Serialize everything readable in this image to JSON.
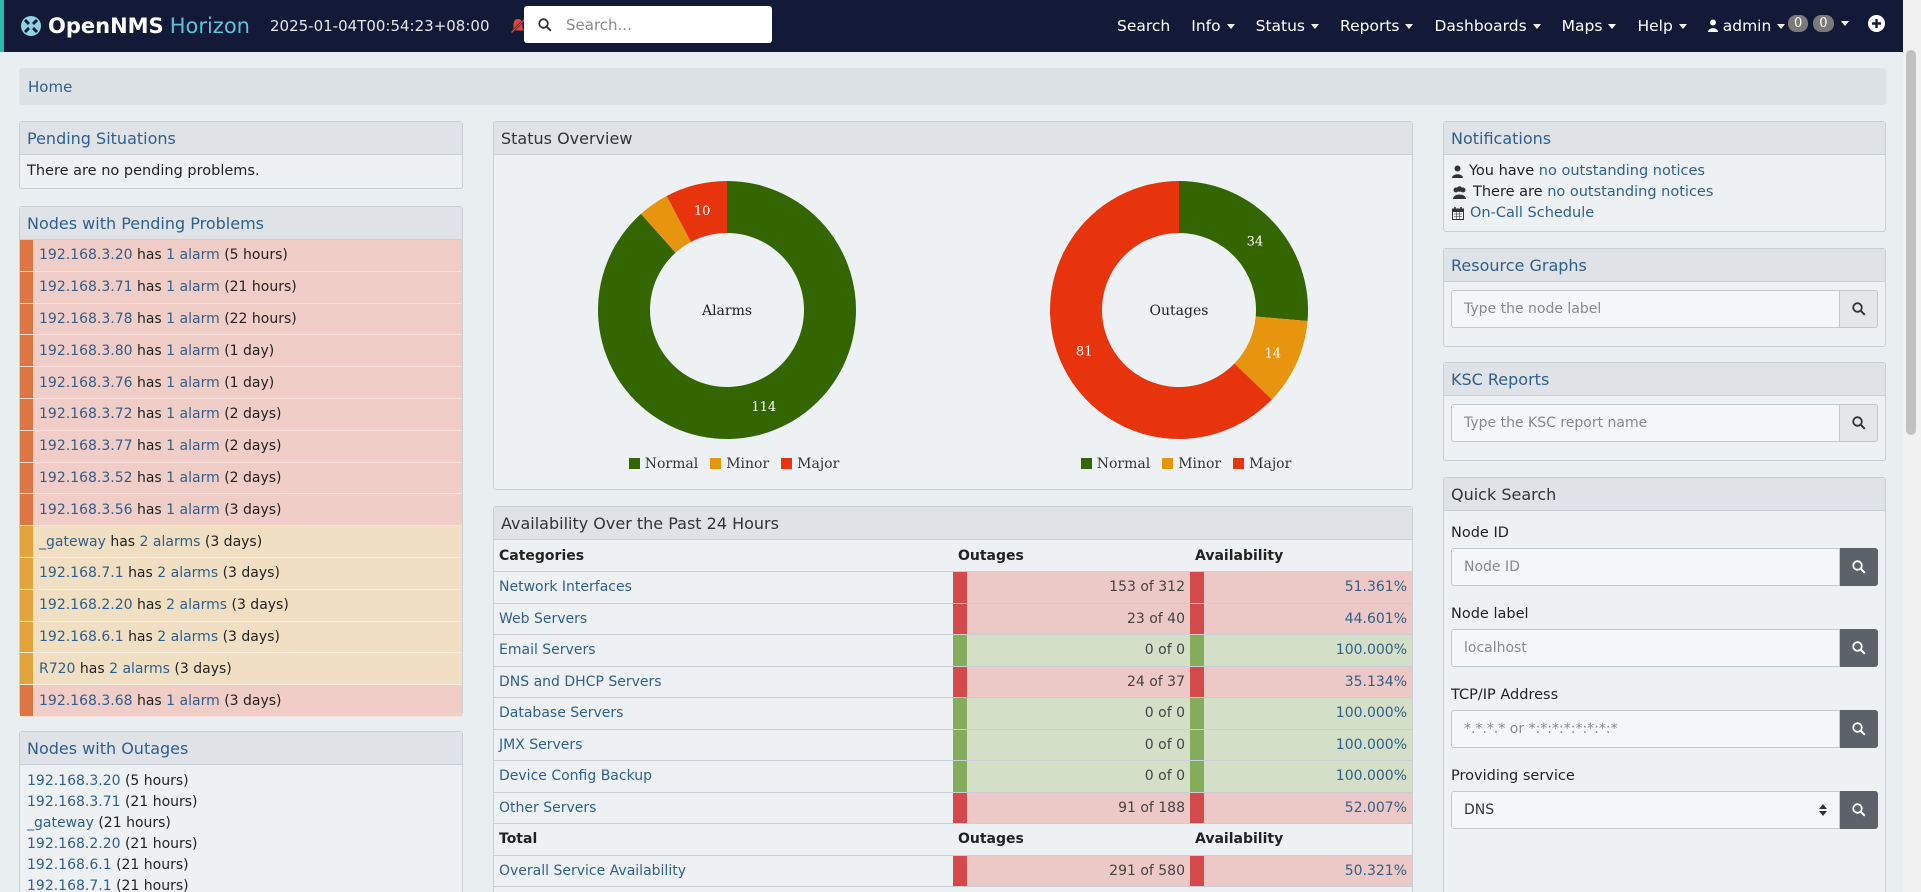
{
  "navbar": {
    "brand_open": "OpenNMS",
    "brand_horizon": "Horizon",
    "timestamp": "2025-01-04T00:54:23+08:00",
    "search_placeholder": "Search...",
    "menu": {
      "search": "Search",
      "info": "Info",
      "status": "Status",
      "reports": "Reports",
      "dashboards": "Dashboards",
      "maps": "Maps",
      "help": "Help",
      "user": "admin"
    },
    "badge_1": "0",
    "badge_2": "0"
  },
  "breadcrumb": {
    "home": "Home"
  },
  "pending_situations": {
    "title": "Pending Situations",
    "message": "There are no pending problems."
  },
  "pending_problems": {
    "title": "Nodes with Pending Problems",
    "rows": [
      {
        "node": "192.168.3.20",
        "has": "has",
        "alarms": "1 alarm",
        "age": "(5 hours)",
        "severity": "major"
      },
      {
        "node": "192.168.3.71",
        "has": "has",
        "alarms": "1 alarm",
        "age": "(21 hours)",
        "severity": "major"
      },
      {
        "node": "192.168.3.78",
        "has": "has",
        "alarms": "1 alarm",
        "age": "(22 hours)",
        "severity": "major"
      },
      {
        "node": "192.168.3.80",
        "has": "has",
        "alarms": "1 alarm",
        "age": "(1 day)",
        "severity": "major"
      },
      {
        "node": "192.168.3.76",
        "has": "has",
        "alarms": "1 alarm",
        "age": "(1 day)",
        "severity": "major"
      },
      {
        "node": "192.168.3.72",
        "has": "has",
        "alarms": "1 alarm",
        "age": "(2 days)",
        "severity": "major"
      },
      {
        "node": "192.168.3.77",
        "has": "has",
        "alarms": "1 alarm",
        "age": "(2 days)",
        "severity": "major"
      },
      {
        "node": "192.168.3.52",
        "has": "has",
        "alarms": "1 alarm",
        "age": "(2 days)",
        "severity": "major"
      },
      {
        "node": "192.168.3.56",
        "has": "has",
        "alarms": "1 alarm",
        "age": "(3 days)",
        "severity": "major"
      },
      {
        "node": "_gateway",
        "has": "has",
        "alarms": "2 alarms",
        "age": "(3 days)",
        "severity": "minor"
      },
      {
        "node": "192.168.7.1",
        "has": "has",
        "alarms": "2 alarms",
        "age": "(3 days)",
        "severity": "minor"
      },
      {
        "node": "192.168.2.20",
        "has": "has",
        "alarms": "2 alarms",
        "age": "(3 days)",
        "severity": "minor"
      },
      {
        "node": "192.168.6.1",
        "has": "has",
        "alarms": "2 alarms",
        "age": "(3 days)",
        "severity": "minor"
      },
      {
        "node": "R720",
        "has": "has",
        "alarms": "2 alarms",
        "age": "(3 days)",
        "severity": "minor"
      },
      {
        "node": "192.168.3.68",
        "has": "has",
        "alarms": "1 alarm",
        "age": "(3 days)",
        "severity": "major"
      }
    ]
  },
  "nodes_with_outages": {
    "title": "Nodes with Outages",
    "rows": [
      {
        "node": "192.168.3.20",
        "age": "(5 hours)"
      },
      {
        "node": "192.168.3.71",
        "age": "(21 hours)"
      },
      {
        "node": "_gateway",
        "age": "(21 hours)"
      },
      {
        "node": "192.168.2.20",
        "age": "(21 hours)"
      },
      {
        "node": "192.168.6.1",
        "age": "(21 hours)"
      },
      {
        "node": "192.168.7.1",
        "age": "(21 hours)"
      }
    ]
  },
  "status_overview": {
    "title": "Status Overview",
    "legend": {
      "normal": "Normal",
      "minor": "Minor",
      "major": "Major"
    },
    "colors": {
      "normal": "#336600",
      "minor": "#e7950f",
      "major": "#e8340c"
    }
  },
  "chart_data": [
    {
      "type": "pie",
      "title": "Alarms",
      "categories": [
        "Normal",
        "Minor",
        "Major"
      ],
      "values": [
        114,
        5,
        10
      ],
      "data_labels": [
        "114",
        "",
        "10"
      ]
    },
    {
      "type": "pie",
      "title": "Outages",
      "categories": [
        "Normal",
        "Minor",
        "Major"
      ],
      "values": [
        34,
        14,
        81
      ],
      "data_labels": [
        "34",
        "14",
        "81"
      ]
    }
  ],
  "availability": {
    "title": "Availability Over the Past 24 Hours",
    "headers": {
      "categories": "Categories",
      "outages": "Outages",
      "availability": "Availability"
    },
    "rows": [
      {
        "name": "Network Interfaces",
        "outages": "153 of 312",
        "availability": "51.361%",
        "status": "red"
      },
      {
        "name": "Web Servers",
        "outages": "23 of 40",
        "availability": "44.601%",
        "status": "red"
      },
      {
        "name": "Email Servers",
        "outages": "0 of 0",
        "availability": "100.000%",
        "status": "green"
      },
      {
        "name": "DNS and DHCP Servers",
        "outages": "24 of 37",
        "availability": "35.134%",
        "status": "red"
      },
      {
        "name": "Database Servers",
        "outages": "0 of 0",
        "availability": "100.000%",
        "status": "green"
      },
      {
        "name": "JMX Servers",
        "outages": "0 of 0",
        "availability": "100.000%",
        "status": "green"
      },
      {
        "name": "Device Config Backup",
        "outages": "0 of 0",
        "availability": "100.000%",
        "status": "green"
      },
      {
        "name": "Other Servers",
        "outages": "91 of 188",
        "availability": "52.007%",
        "status": "red"
      }
    ],
    "total_headers": {
      "total": "Total",
      "outages": "Outages",
      "availability": "Availability"
    },
    "overall": {
      "name": "Overall Service Availability",
      "outages": "291 of 580",
      "availability": "50.321%",
      "status": "red"
    }
  },
  "notifications": {
    "title": "Notifications",
    "line1_prefix": "You have",
    "line1_link": "no outstanding notices",
    "line2_prefix": "There are",
    "line2_link": "no outstanding notices",
    "oncall": "On-Call Schedule"
  },
  "resource_graphs": {
    "title": "Resource Graphs",
    "placeholder": "Type the node label"
  },
  "ksc_reports": {
    "title": "KSC Reports",
    "placeholder": "Type the KSC report name"
  },
  "quick_search": {
    "title": "Quick Search",
    "node_id_label": "Node ID",
    "node_id_placeholder": "Node ID",
    "node_label_label": "Node label",
    "node_label_placeholder": "localhost",
    "ip_label": "TCP/IP Address",
    "ip_placeholder": "*.*.*.* or *:*:*:*:*:*:*:*",
    "service_label": "Providing service",
    "service_value": "DNS"
  }
}
